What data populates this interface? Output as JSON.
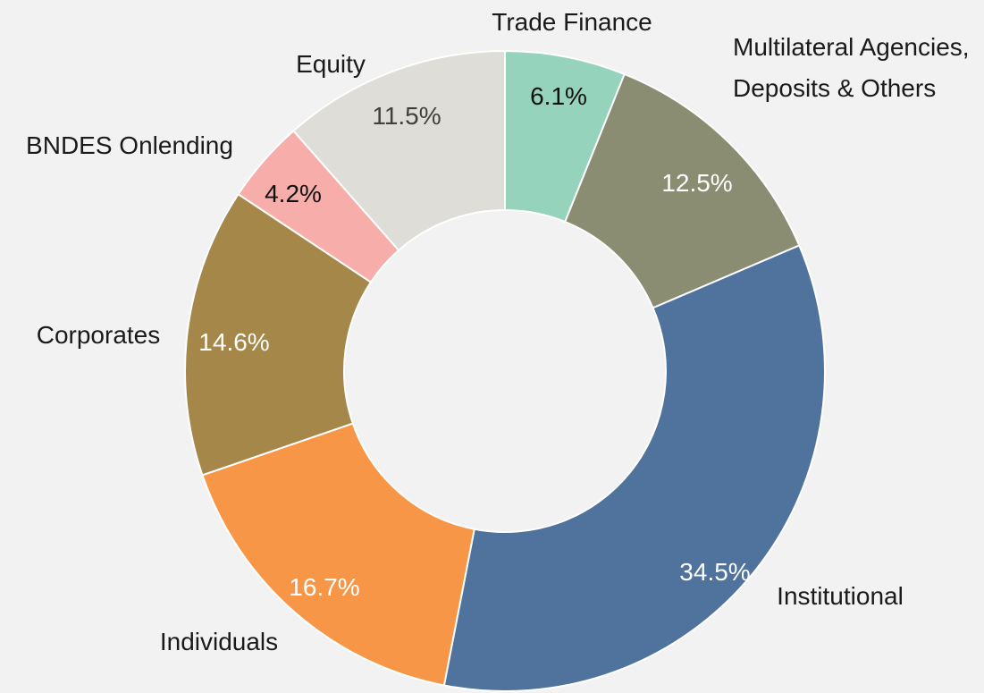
{
  "chart_data": {
    "type": "donut",
    "categories": [
      "Trade Finance",
      "Multilateral Agencies, Deposits & Others",
      "Institutional",
      "Individuals",
      "Corporates",
      "BNDES Onlending",
      "Equity"
    ],
    "values": [
      6.1,
      12.5,
      34.5,
      16.7,
      14.6,
      4.2,
      11.5
    ],
    "value_labels": [
      "6.1%",
      "12.5%",
      "34.5%",
      "16.7%",
      "14.6%",
      "4.2%",
      "11.5%"
    ],
    "colors": [
      "#96d3bd",
      "#8a8d72",
      "#4f739c",
      "#f79646",
      "#a6874a",
      "#f7aeab",
      "#dfddd8"
    ]
  }
}
